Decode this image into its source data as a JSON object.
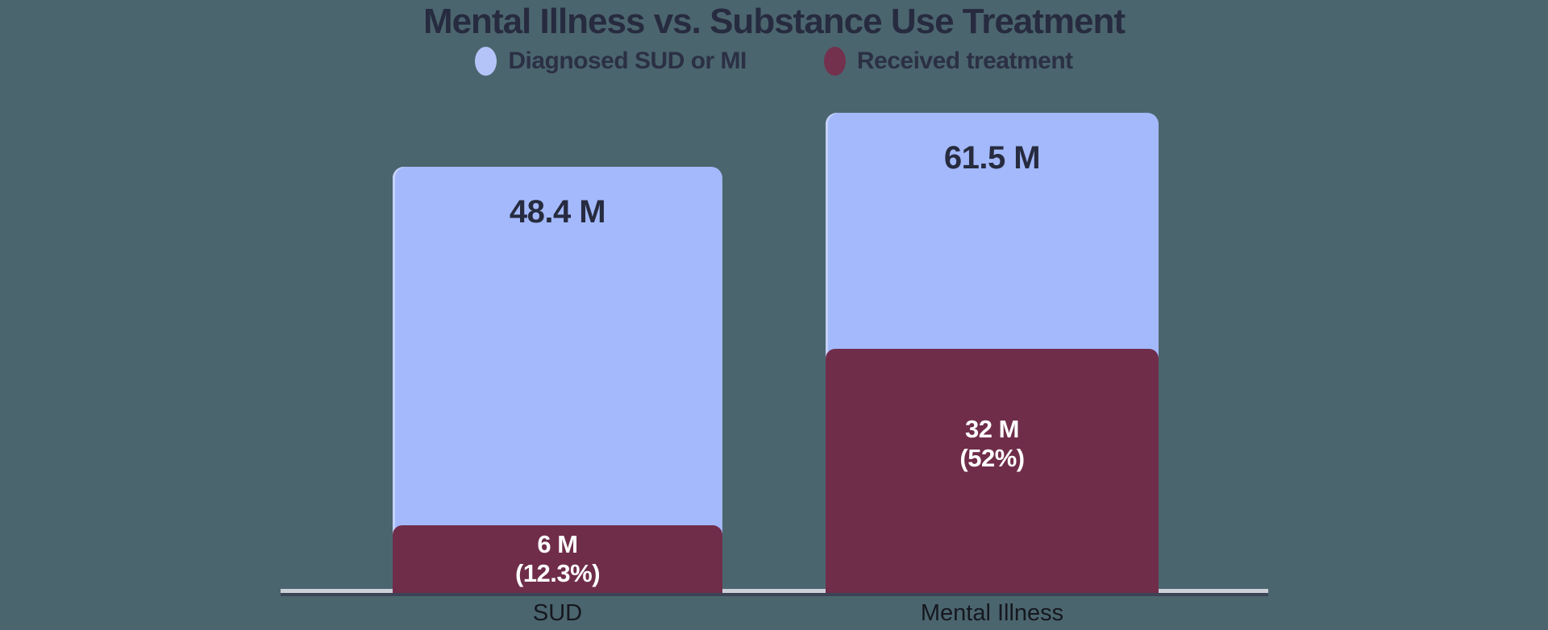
{
  "title": "Mental Illness vs. Substance Use Treatment",
  "legend": {
    "items": [
      {
        "label": "Diagnosed SUD or MI",
        "color": "#b4c4f8"
      },
      {
        "label": "Received treatment",
        "color": "#74314e"
      }
    ]
  },
  "bars": [
    {
      "category": "SUD",
      "diagnosed_label": "48.4 M",
      "treated_line1": "6 M",
      "treated_line2": "(12.3%)"
    },
    {
      "category": "Mental Illness",
      "diagnosed_label": "61.5 M",
      "treated_line1": "32 M",
      "treated_line2": "(52%)"
    }
  ],
  "chart_data": {
    "type": "bar",
    "title": "Mental Illness vs. Substance Use Treatment",
    "categories": [
      "SUD",
      "Mental Illness"
    ],
    "series": [
      {
        "name": "Diagnosed SUD or MI",
        "values": [
          48.4,
          61.5
        ],
        "unit": "million people",
        "color": "#a3b9fb"
      },
      {
        "name": "Received treatment",
        "values": [
          6,
          32
        ],
        "unit": "million people",
        "percent_of_diagnosed": [
          12.3,
          52
        ],
        "color": "#6f2d4a"
      }
    ],
    "data_labels": [
      "48.4 M",
      "61.5 M",
      "6 M (12.3%)",
      "32 M (52%)"
    ],
    "legend_position": "top",
    "grid": false,
    "xlabel": "",
    "ylabel": "",
    "y_axis_visible": false,
    "layout": "overlay"
  },
  "colors": {
    "background": "#4b656e",
    "bar_diagnosed": "#a3b9fb",
    "bar_treated": "#6f2d4a",
    "dark_text": "#272b3f",
    "white_text": "#ffffff",
    "axis_line_light": "#ccd0d8",
    "axis_line_dark": "#3d4356"
  }
}
